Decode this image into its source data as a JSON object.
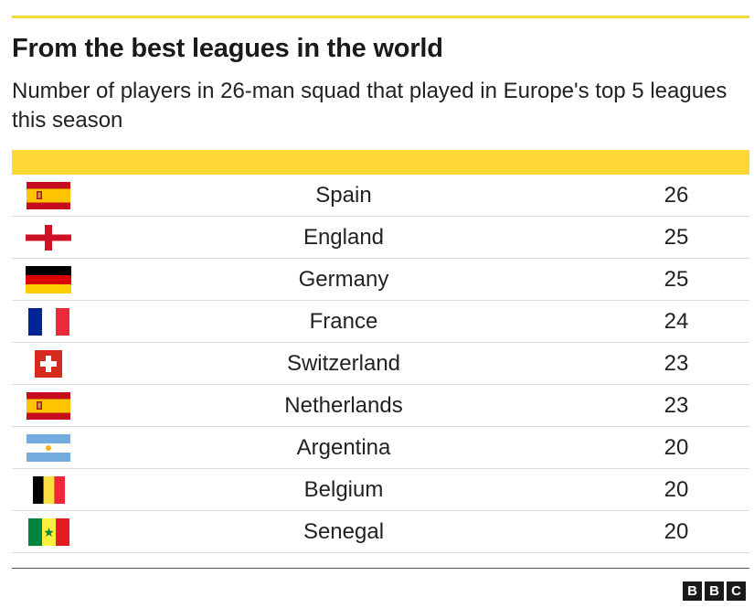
{
  "chart_data": {
    "type": "table",
    "title": "From the best leagues in the world",
    "subtitle": "Number of players in 26-man squad that played in Europe's top 5 leagues this season",
    "rows": [
      {
        "country": "Spain",
        "value": 26,
        "flag": "spain-flag"
      },
      {
        "country": "England",
        "value": 25,
        "flag": "england-flag"
      },
      {
        "country": "Germany",
        "value": 25,
        "flag": "germany-flag"
      },
      {
        "country": "France",
        "value": 24,
        "flag": "france-flag"
      },
      {
        "country": "Switzerland",
        "value": 23,
        "flag": "switzerland-flag"
      },
      {
        "country": "Netherlands",
        "value": 23,
        "flag": "spain-flag"
      },
      {
        "country": "Argentina",
        "value": 20,
        "flag": "argentina-flag"
      },
      {
        "country": "Belgium",
        "value": 20,
        "flag": "belgium-flag"
      },
      {
        "country": "Senegal",
        "value": 20,
        "flag": "senegal-flag"
      }
    ]
  },
  "colors": {
    "accent_yellow": "#fdd835",
    "rule_yellow": "#f5d63d",
    "row_divider": "#dcdcdc",
    "text": "#222222"
  },
  "branding": {
    "logo_letters": [
      "B",
      "B",
      "C"
    ]
  }
}
